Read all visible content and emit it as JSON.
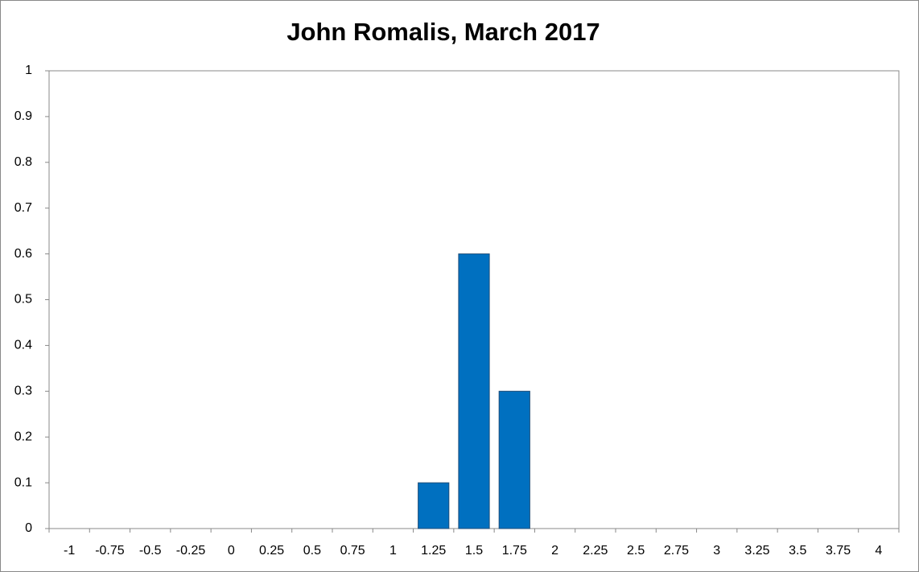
{
  "chart_data": {
    "type": "bar",
    "title": "John Romalis, March 2017",
    "categories": [
      "-1",
      "-0.75",
      "-0.5",
      "-0.25",
      "0",
      "0.25",
      "0.5",
      "0.75",
      "1",
      "1.25",
      "1.5",
      "1.75",
      "2",
      "2.25",
      "2.5",
      "2.75",
      "3",
      "3.25",
      "3.5",
      "3.75",
      "4"
    ],
    "values": [
      0,
      0,
      0,
      0,
      0,
      0,
      0,
      0,
      0,
      0.1,
      0.6,
      0.3,
      0,
      0,
      0,
      0,
      0,
      0,
      0,
      0,
      0
    ],
    "color": "#0070c0",
    "ylim": [
      0,
      1
    ],
    "yticks": [
      0,
      0.1,
      0.2,
      0.3,
      0.4,
      0.5,
      0.6,
      0.7,
      0.8,
      0.9,
      1
    ],
    "grid": false
  }
}
